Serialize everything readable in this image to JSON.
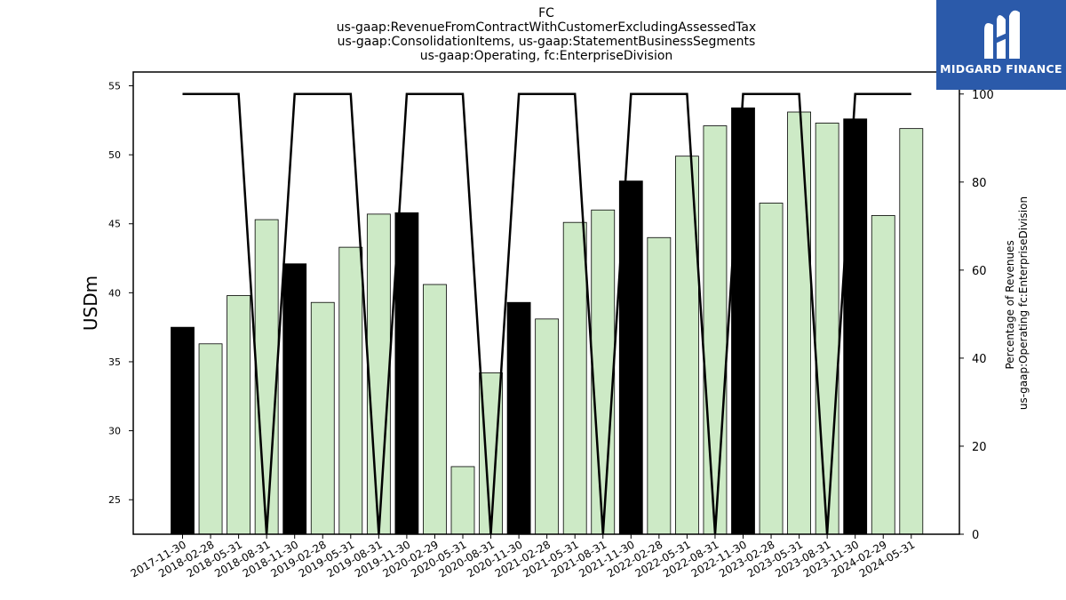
{
  "chart_data": {
    "type": "bar",
    "title_lines": [
      "FC",
      "us-gaap:RevenueFromContractWithCustomerExcludingAssessedTax",
      "us-gaap:ConsolidationItems, us-gaap:StatementBusinessSegments",
      "us-gaap:Operating, fc:EnterpriseDivision"
    ],
    "ylabel": "USDm",
    "y2label_lines": [
      "Percentage of Revenues",
      "us-gaap:Operating fc:EnterpriseDivision"
    ],
    "ylim": [
      22.5,
      56
    ],
    "yticks": [
      25,
      30,
      35,
      40,
      45,
      50,
      55
    ],
    "y2lim": [
      0,
      105
    ],
    "y2ticks": [
      0,
      20,
      40,
      60,
      80,
      100
    ],
    "categories": [
      "2017-11-30",
      "2018-02-28",
      "2018-05-31",
      "2018-08-31",
      "2018-11-30",
      "2019-02-28",
      "2019-05-31",
      "2019-08-31",
      "2019-11-30",
      "2020-02-29",
      "2020-05-31",
      "2020-08-31",
      "2020-11-30",
      "2021-02-28",
      "2021-05-31",
      "2021-08-31",
      "2021-11-30",
      "2022-02-28",
      "2022-05-31",
      "2022-08-31",
      "2022-11-30",
      "2023-02-28",
      "2023-05-31",
      "2023-08-31",
      "2023-11-30",
      "2024-02-29",
      "2024-05-31"
    ],
    "values": [
      37.5,
      36.3,
      39.8,
      45.3,
      42.1,
      39.3,
      43.3,
      45.7,
      45.8,
      40.6,
      27.4,
      34.2,
      39.3,
      38.1,
      45.1,
      46.0,
      48.1,
      44.0,
      49.9,
      52.1,
      53.4,
      46.5,
      53.1,
      52.3,
      52.6,
      45.6,
      51.9
    ],
    "bar_kinds": [
      "annual",
      "quarter",
      "quarter",
      "quarter",
      "annual",
      "quarter",
      "quarter",
      "quarter",
      "annual",
      "quarter",
      "quarter",
      "quarter",
      "annual",
      "quarter",
      "quarter",
      "quarter",
      "annual",
      "quarter",
      "quarter",
      "quarter",
      "annual",
      "quarter",
      "quarter",
      "quarter",
      "annual",
      "quarter",
      "quarter"
    ],
    "percentage_line": [
      100,
      100,
      100,
      0,
      100,
      100,
      100,
      0,
      100,
      100,
      100,
      0,
      100,
      100,
      100,
      0,
      100,
      100,
      100,
      0,
      100,
      100,
      100,
      0,
      100,
      100,
      100
    ],
    "colors": {
      "annual": "#000000",
      "quarter": "#cdeac6",
      "line": "#000000"
    }
  },
  "logo": {
    "text": "MIDGARD FINANCE",
    "background": "#2b5aaa"
  }
}
